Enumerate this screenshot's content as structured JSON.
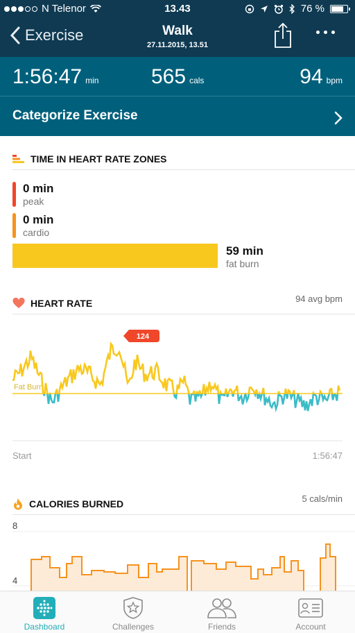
{
  "status": {
    "carrier": "N Telenor",
    "time": "13.43",
    "battery": "76 %",
    "battery_level": 0.76
  },
  "nav": {
    "back_label": "Exercise",
    "title": "Walk",
    "subtitle": "27.11.2015, 13.51"
  },
  "summary": {
    "duration": "1:56:47",
    "duration_unit": "min",
    "calories": "565",
    "calories_unit": "cals",
    "heart_rate": "94",
    "heart_rate_unit": "bpm",
    "categorize_label": "Categorize Exercise"
  },
  "zones": {
    "title": "TIME IN HEART RATE ZONES",
    "peak": {
      "value": "0 min",
      "label": "peak"
    },
    "cardio": {
      "value": "0 min",
      "label": "cardio"
    },
    "fat_burn": {
      "value": "59 min",
      "label": "fat burn"
    }
  },
  "heart_rate_section": {
    "title": "HEART RATE",
    "avg": "94 avg bpm",
    "peak_marker": "124",
    "threshold_label": "Fat Burn",
    "start_label": "Start",
    "end_label": "1:56:47"
  },
  "calories_section": {
    "title": "CALORIES BURNED",
    "rate": "5 cals/min",
    "y_top": "8",
    "y_mid": "4"
  },
  "tabs": [
    {
      "label": "Dashboard"
    },
    {
      "label": "Challenges"
    },
    {
      "label": "Friends"
    },
    {
      "label": "Account"
    }
  ],
  "colors": {
    "header": "#0f3a52",
    "summary": "#00607c",
    "fat_burn": "#f8c81e",
    "below_zone": "#3bbcc6",
    "peak": "#f0462a",
    "cardio": "#f6921e",
    "calories": "#f6921e",
    "accent": "#22aeb8"
  }
}
